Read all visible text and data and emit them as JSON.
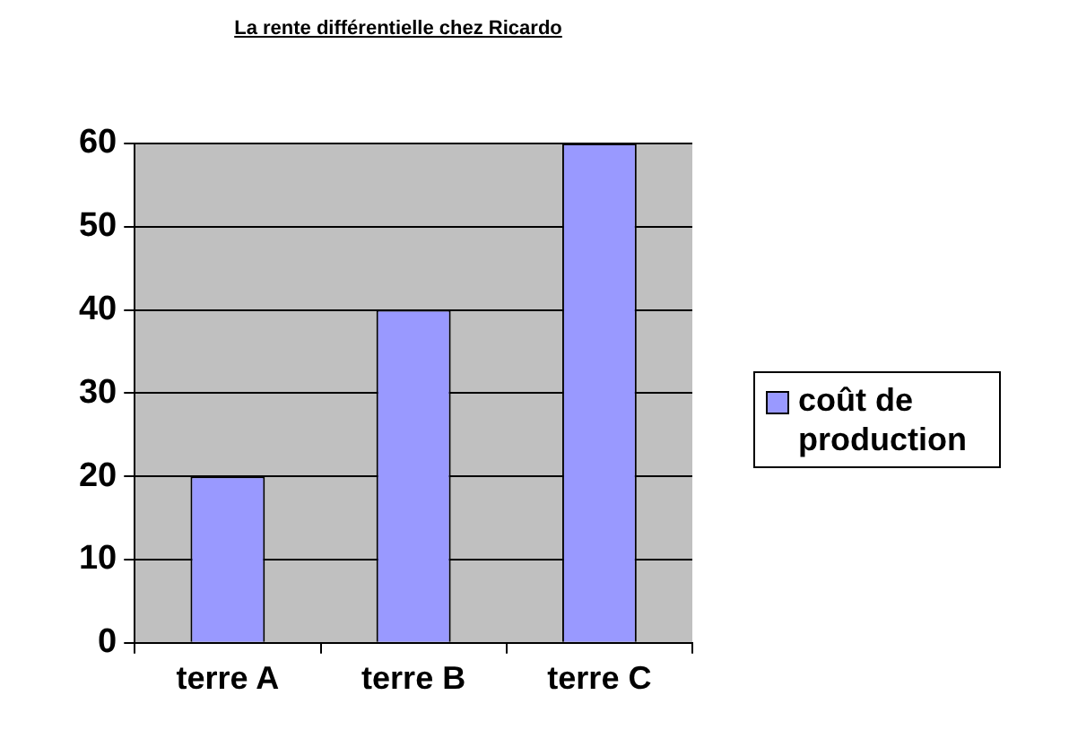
{
  "chart_data": {
    "type": "bar",
    "title": "La rente différentielle chez Ricardo",
    "categories": [
      "terre A",
      "terre B",
      "terre C"
    ],
    "series": [
      {
        "name": "coût de production",
        "color": "#9999ff",
        "values": [
          20,
          40,
          60
        ]
      }
    ],
    "ylim": [
      0,
      60
    ],
    "yticks": [
      0,
      10,
      20,
      30,
      40,
      50,
      60
    ],
    "grid": "y",
    "legend": "right"
  }
}
